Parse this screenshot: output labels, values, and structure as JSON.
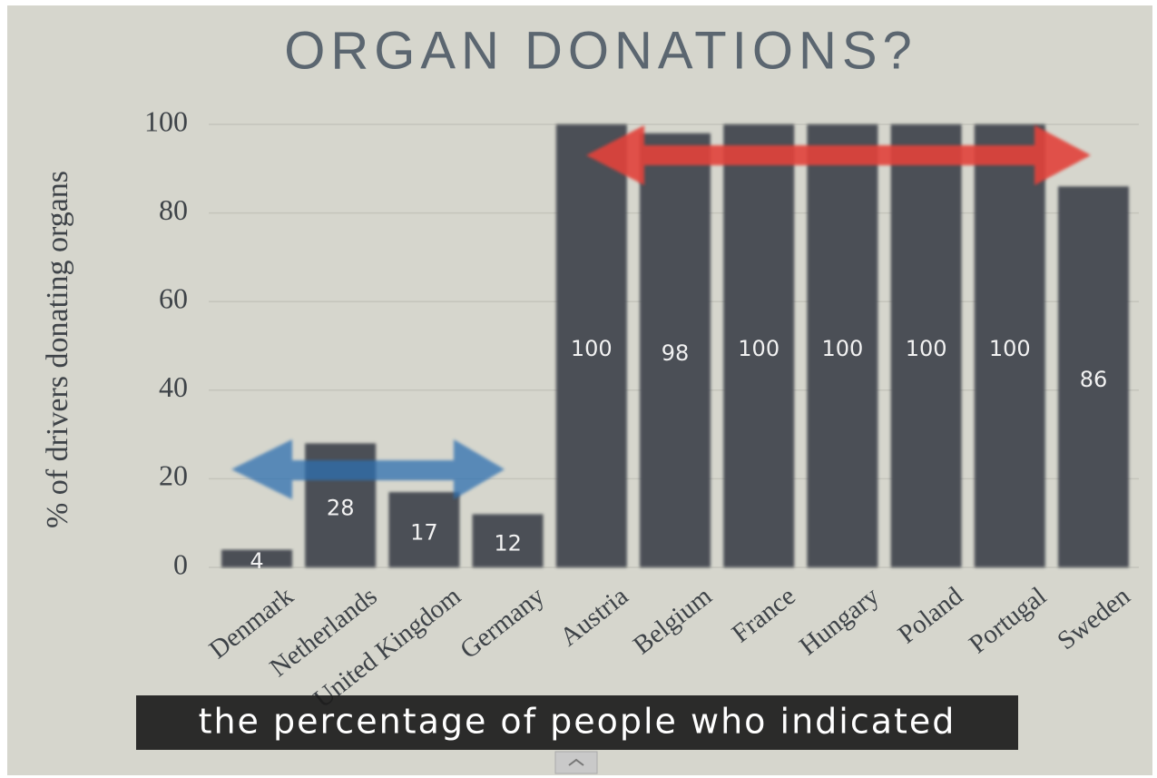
{
  "chart_data": {
    "type": "bar",
    "title": "ORGAN DONATIONS?",
    "y_label": "% of drivers donating organs",
    "categories": [
      "Denmark",
      "Netherlands",
      "United Kingdom",
      "Germany",
      "Austria",
      "Belgium",
      "France",
      "Hungary",
      "Poland",
      "Portugal",
      "Sweden"
    ],
    "values": [
      4,
      28,
      17,
      12,
      100,
      98,
      100,
      100,
      100,
      100,
      86
    ],
    "color": "#4b5057",
    "ylim": [
      0,
      100
    ],
    "yticks": [
      0,
      20,
      40,
      60,
      80,
      100
    ],
    "grid": true
  },
  "caption": "the percentage of people who indicated"
}
